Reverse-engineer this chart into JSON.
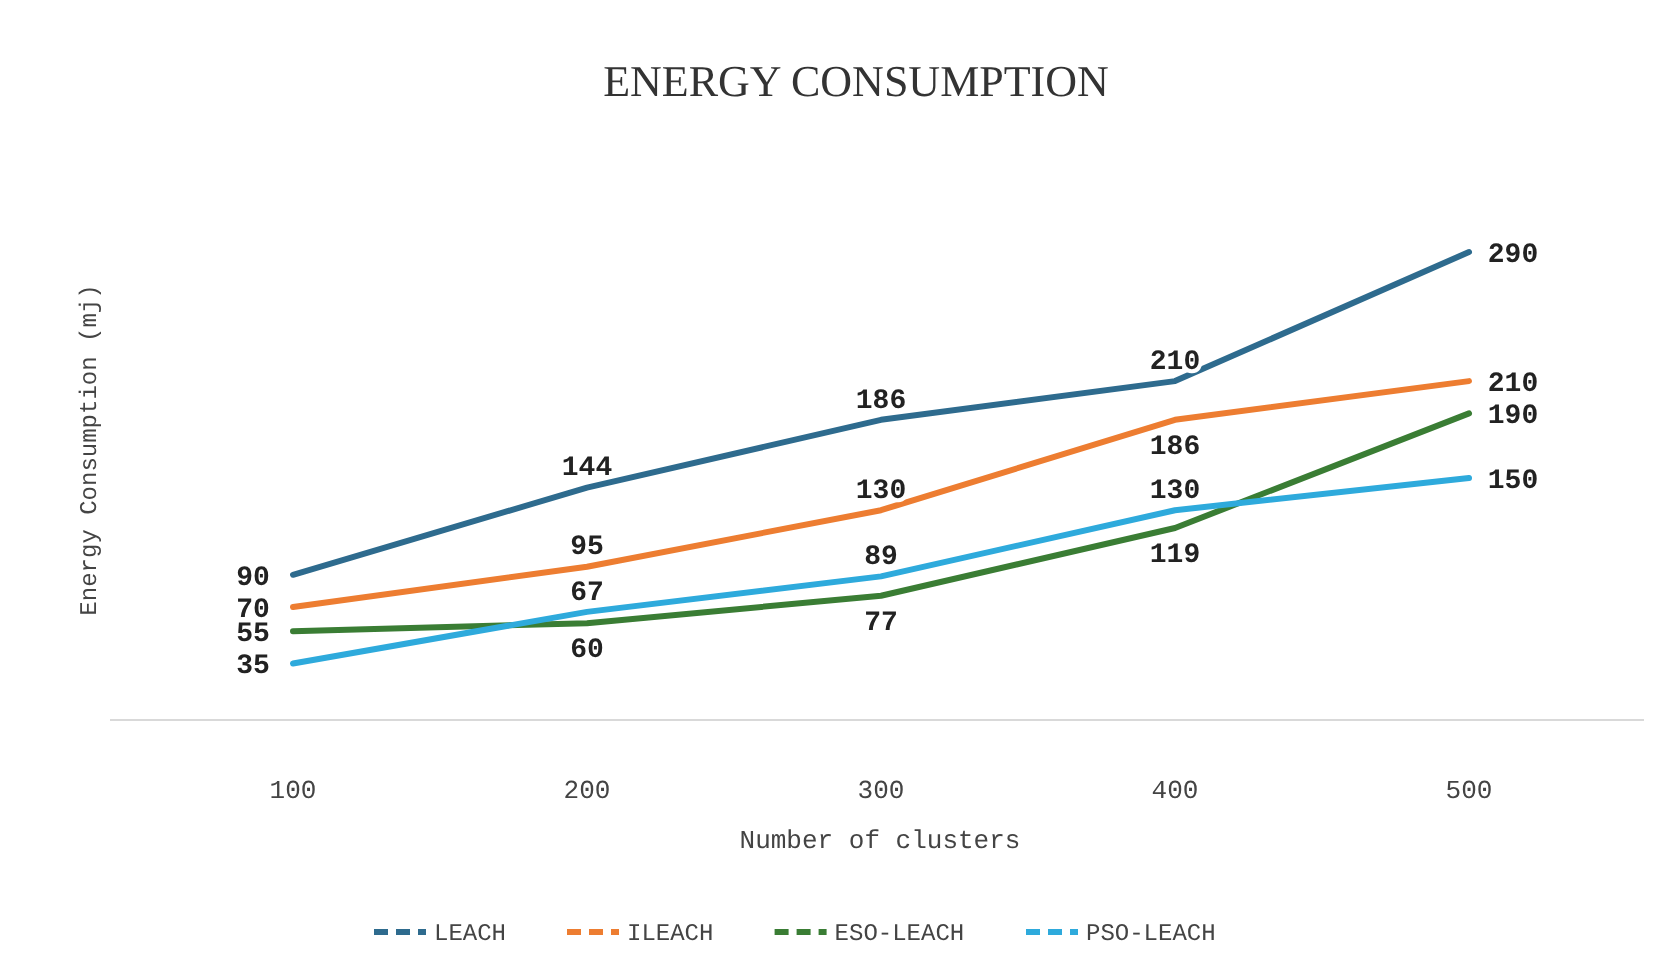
{
  "chart_data": {
    "type": "line",
    "title": "ENERGY CONSUMPTION",
    "xlabel": "Number of clusters",
    "ylabel": "Energy Consumption (mj)",
    "categories": [
      "100",
      "200",
      "300",
      "400",
      "500"
    ],
    "series": [
      {
        "name": "LEACH",
        "color": "#2e6b8e",
        "values": [
          90,
          144,
          186,
          210,
          290
        ]
      },
      {
        "name": "ILEACH",
        "color": "#ed7d31",
        "values": [
          70,
          95,
          130,
          186,
          210
        ]
      },
      {
        "name": "ESO-LEACH",
        "color": "#3a7d34",
        "values": [
          55,
          60,
          77,
          119,
          190
        ]
      },
      {
        "name": "PSO-LEACH",
        "color": "#2eaadc",
        "values": [
          35,
          67,
          89,
          130,
          150
        ]
      }
    ],
    "data_labels": true,
    "legend": "bottom",
    "grid": false,
    "marker": "none",
    "line_style": "solid"
  }
}
